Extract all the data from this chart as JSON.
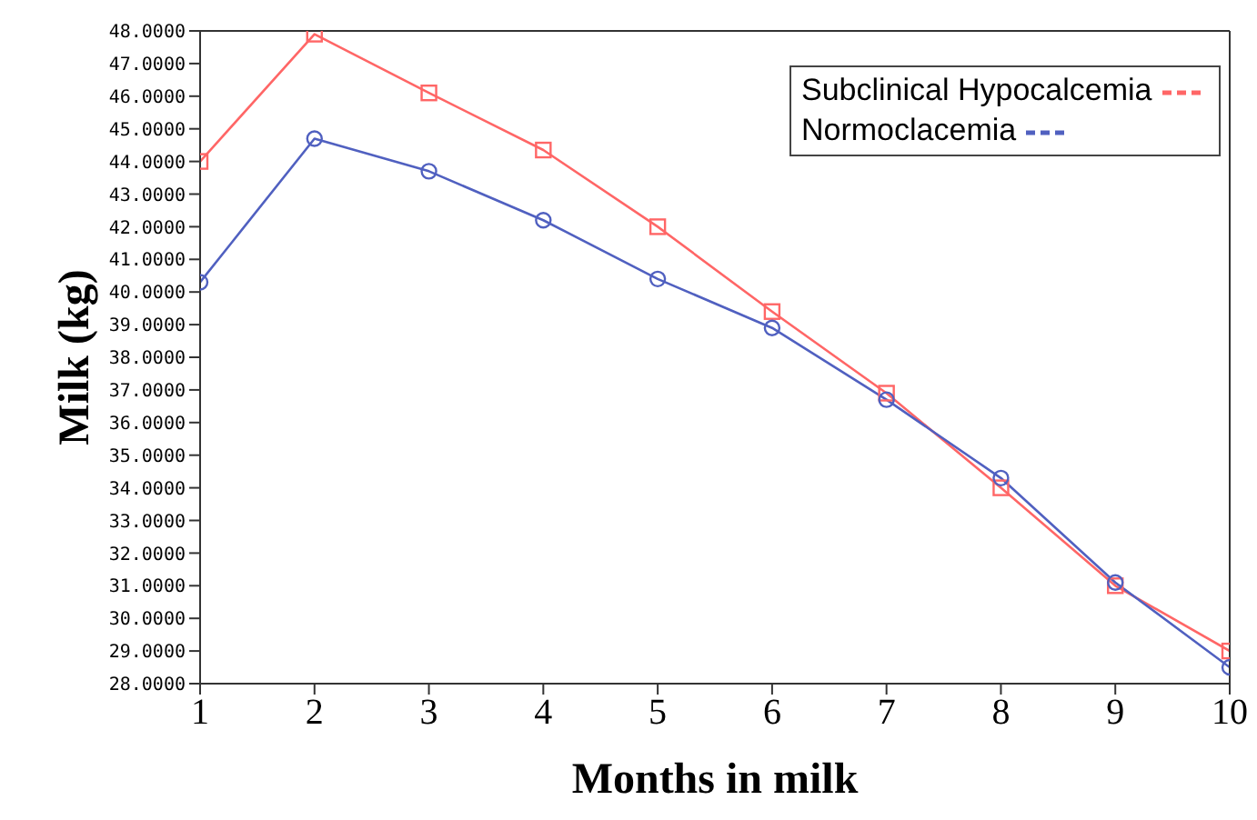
{
  "chart_data": {
    "type": "line",
    "xlabel": "Months in milk",
    "ylabel": "Milk (kg)",
    "x": [
      1,
      2,
      3,
      4,
      5,
      6,
      7,
      8,
      9,
      10
    ],
    "xlim": [
      1,
      10
    ],
    "xticks": [
      1,
      2,
      3,
      4,
      5,
      6,
      7,
      8,
      9,
      10
    ],
    "ylim": [
      28,
      48
    ],
    "yticks": [
      {
        "value": 28,
        "label": "28.0000"
      },
      {
        "value": 29,
        "label": "29.0000"
      },
      {
        "value": 30,
        "label": "30.0000"
      },
      {
        "value": 31,
        "label": "31.0000"
      },
      {
        "value": 32,
        "label": "32.0000"
      },
      {
        "value": 33,
        "label": "33.0000"
      },
      {
        "value": 34,
        "label": "34.0000"
      },
      {
        "value": 35,
        "label": "35.0000"
      },
      {
        "value": 36,
        "label": "36.0000"
      },
      {
        "value": 37,
        "label": "37.0000"
      },
      {
        "value": 38,
        "label": "38.0000"
      },
      {
        "value": 39,
        "label": "39.0000"
      },
      {
        "value": 40,
        "label": "40.0000"
      },
      {
        "value": 41,
        "label": "41.0000"
      },
      {
        "value": 42,
        "label": "42.0000"
      },
      {
        "value": 43,
        "label": "43.0000"
      },
      {
        "value": 44,
        "label": "44.0000"
      },
      {
        "value": 45,
        "label": "45.0000"
      },
      {
        "value": 46,
        "label": "46.0000"
      },
      {
        "value": 47,
        "label": "47.0000"
      },
      {
        "value": 48,
        "label": "48.0000"
      }
    ],
    "grid": false,
    "legend": "top right",
    "line_style": "solid",
    "series": [
      {
        "name": "Subclinical Hypocalcemia",
        "color": "#ff6666",
        "marker": "square",
        "values": [
          44.0,
          47.9,
          46.1,
          44.35,
          42.0,
          39.4,
          36.9,
          34.0,
          31.0,
          29.0
        ]
      },
      {
        "name": "Normoclacemia",
        "color": "#5060c0",
        "marker": "circle",
        "values": [
          40.3,
          44.7,
          43.7,
          42.2,
          40.4,
          38.9,
          36.7,
          34.3,
          31.1,
          28.5
        ]
      }
    ]
  }
}
